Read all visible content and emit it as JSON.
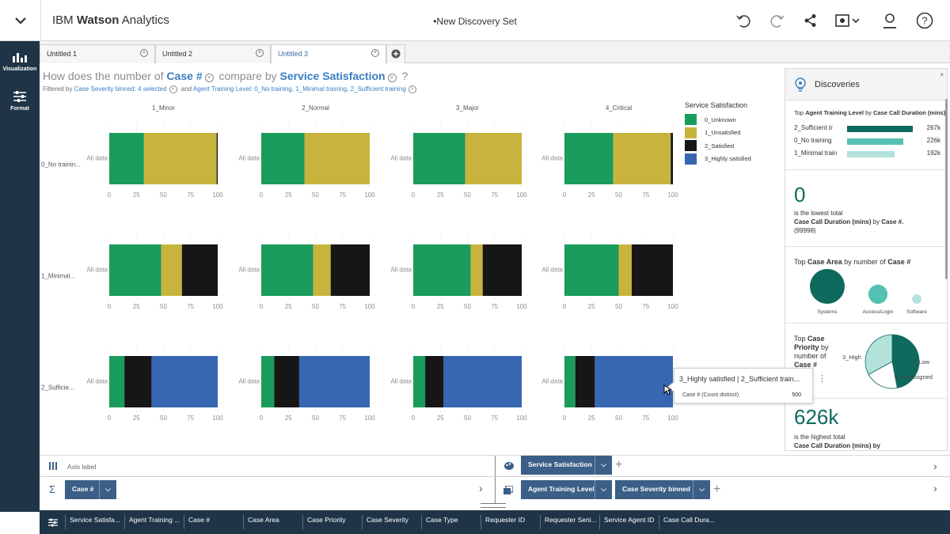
{
  "app": {
    "brand_light": "IBM ",
    "brand_bold": "Watson",
    "brand_rest": " Analytics",
    "doc_title": "•New Discovery Set"
  },
  "leftnav": [
    {
      "label": "Visualization",
      "icon": "bar-chart-icon"
    },
    {
      "label": "Format",
      "icon": "sliders-icon"
    }
  ],
  "tabs": [
    {
      "label": "Untitled 1"
    },
    {
      "label": "Untitled 2"
    },
    {
      "label": "Untitled 3"
    }
  ],
  "question": {
    "p1": "How does the number of ",
    "kw1": "Case #",
    "p2": " compare by ",
    "kw2": "Service Satisfaction",
    "p3": " ?"
  },
  "filters": {
    "prefix": "Filtered by ",
    "f1": "Case Severity binned: 4 selected",
    "mid": " and ",
    "f2": "Agent Training Level: 0_No training, 1_Minimal training, 2_Sufficient training"
  },
  "colors": {
    "unknown": "#1a9c5c",
    "unsatisfied": "#c8b43c",
    "satisfied": "#161616",
    "highly": "#3767b2",
    "teal_dark": "#0f6a5e",
    "teal_mid": "#54c1b2",
    "teal_light": "#b2e2da"
  },
  "chart_data": {
    "type": "bar",
    "orientation": "horizontal-stacked-100",
    "columns": [
      "1_Minor",
      "2_Normal",
      "3_Major",
      "4_Critical"
    ],
    "rows": [
      "0_No trainin...",
      "1_Minimal...",
      "2_Sufficie..."
    ],
    "category_label": "All data",
    "xticks": [
      "0",
      "25",
      "50",
      "75",
      "100"
    ],
    "xlim": [
      0,
      100
    ],
    "legend_title": "Service Satisfaction",
    "legend": [
      "0_Unknown",
      "1_Unsatisfied",
      "2_Satisfied",
      "3_Highly satisfied"
    ],
    "segments": [
      "unknown",
      "unsatisfied",
      "satisfied",
      "highly"
    ],
    "cells": [
      [
        [
          32,
          67,
          1,
          0
        ],
        [
          40,
          60,
          0,
          0
        ],
        [
          48,
          52,
          0,
          0
        ],
        [
          45,
          53,
          2,
          0
        ]
      ],
      [
        [
          48,
          19,
          33,
          0
        ],
        [
          48,
          16,
          36,
          0
        ],
        [
          53,
          11,
          36,
          0
        ],
        [
          50,
          12,
          38,
          0
        ]
      ],
      [
        [
          14,
          0,
          25,
          61
        ],
        [
          12,
          0,
          23,
          65
        ],
        [
          11,
          0,
          17,
          72
        ],
        [
          10,
          0,
          18,
          72
        ]
      ]
    ]
  },
  "discoveries": {
    "title": "Discoveries",
    "close": "×",
    "rank_title_a": "Top ",
    "rank_title_b": "Agent Training Level",
    "rank_title_c": " by ",
    "rank_title_d": "Case Call Duration (mins)",
    "rank": [
      {
        "label": "2_Sufficient tr",
        "value": "267k",
        "fraction": 1.0
      },
      {
        "label": "0_No training",
        "value": "226k",
        "fraction": 0.85
      },
      {
        "label": "1_Minimal train",
        "value": "192k",
        "fraction": 0.72
      }
    ],
    "lowest": {
      "num": "0",
      "l1": "is the lowest total",
      "l2a": "Case Call Duration (mins)",
      "l2b": " by ",
      "l2c": "Case #.",
      "l3": "(99998)"
    },
    "area": {
      "title_a": "Top ",
      "title_b": "Case Area",
      "title_c": " by number of ",
      "title_d": "Case #",
      "items": [
        {
          "label": "Systems",
          "size": 1.0
        },
        {
          "label": "Access/Login",
          "size": 0.55
        },
        {
          "label": "Software",
          "size": 0.27
        }
      ]
    },
    "priority": {
      "l1a": "Top ",
      "l1b": "Case",
      "l2a": "Priority",
      "l2b": " by",
      "l3": "number of",
      "l4": "Case #",
      "slices": [
        {
          "label": "3_High",
          "share": 0.47
        },
        {
          "label": "1_Low",
          "share": 0.2
        },
        {
          "label": "0_Unassigned",
          "share": 0.33
        }
      ]
    },
    "highest": {
      "num": "626k",
      "l1": "is the highest total",
      "l2": "Case Call Duration (mins) by"
    }
  },
  "tooltip": {
    "title": "3_Highly satisfied | 2_Sufficient train...",
    "measure": "Case # (Count distinct)",
    "value": "500"
  },
  "bottom": {
    "axis_label": "Axis label",
    "color_pill": "Service Satisfaction",
    "sigma": "Σ",
    "measure_pill": "Case #",
    "grid_pill1": "Agent Training Level",
    "grid_pill2": "Case Severity binned"
  },
  "fields": [
    "Service Satisfa...",
    "Agent Training ...",
    "Case #",
    "Case Area",
    "Case Priority",
    "Case Severity",
    "Case Type",
    "Requester ID",
    "Requester Seni...",
    "Service Agent ID",
    "Case Call Dura..."
  ]
}
